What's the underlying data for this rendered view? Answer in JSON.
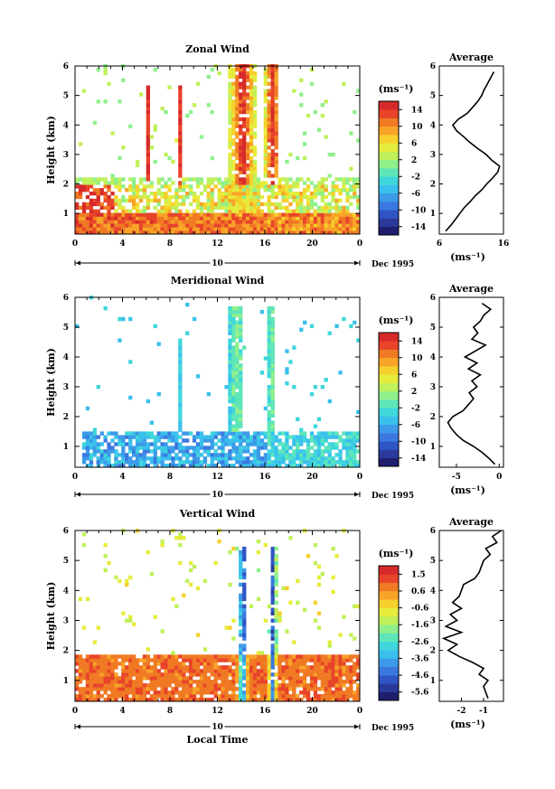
{
  "chart_data": [
    {
      "type": "heatmap",
      "title": "Zonal Wind",
      "ylabel": "Height (km)",
      "xlim": [
        0,
        24
      ],
      "ylim": [
        0.3,
        6
      ],
      "xticks": [
        "0",
        "4",
        "8",
        "12",
        "16",
        "20",
        "0"
      ],
      "yticks": [
        "1",
        "2",
        "3",
        "4",
        "5",
        "6"
      ],
      "date_label": "10",
      "date_suffix": "Dec 1995",
      "colorbar": {
        "unit": "(ms⁻¹)",
        "ticks": [
          "14",
          "10",
          "6",
          "2",
          "-2",
          "-6",
          "-10",
          "-14"
        ],
        "vmin": -16,
        "vmax": 16
      },
      "average": {
        "title": "Average",
        "xlim": [
          6,
          16
        ],
        "xticks": [
          "6",
          "16"
        ],
        "xlabel": "(ms⁻¹)",
        "profile": [
          [
            0.4,
            7.0
          ],
          [
            0.6,
            7.8
          ],
          [
            0.8,
            8.5
          ],
          [
            1.0,
            9.2
          ],
          [
            1.2,
            9.9
          ],
          [
            1.4,
            10.8
          ],
          [
            1.6,
            11.6
          ],
          [
            1.8,
            12.6
          ],
          [
            2.0,
            13.4
          ],
          [
            2.2,
            14.3
          ],
          [
            2.4,
            15.1
          ],
          [
            2.6,
            15.4
          ],
          [
            2.8,
            14.2
          ],
          [
            3.0,
            13.3
          ],
          [
            3.2,
            12.0
          ],
          [
            3.4,
            10.8
          ],
          [
            3.6,
            9.8
          ],
          [
            3.8,
            8.7
          ],
          [
            4.0,
            8.1
          ],
          [
            4.2,
            9.0
          ],
          [
            4.4,
            10.4
          ],
          [
            4.6,
            11.2
          ],
          [
            4.8,
            12.0
          ],
          [
            5.0,
            12.6
          ],
          [
            5.2,
            13.0
          ],
          [
            5.4,
            13.5
          ],
          [
            5.6,
            14.0
          ],
          [
            5.8,
            14.5
          ]
        ]
      }
    },
    {
      "type": "heatmap",
      "title": "Meridional Wind",
      "ylabel": "Height (km)",
      "xlim": [
        0,
        24
      ],
      "ylim": [
        0.3,
        6
      ],
      "xticks": [
        "0",
        "4",
        "8",
        "12",
        "16",
        "20",
        "0"
      ],
      "yticks": [
        "1",
        "2",
        "3",
        "4",
        "5",
        "6"
      ],
      "date_label": "10",
      "date_suffix": "Dec 1995",
      "colorbar": {
        "unit": "(ms⁻¹)",
        "ticks": [
          "14",
          "10",
          "6",
          "2",
          "-2",
          "-6",
          "-10",
          "-14"
        ],
        "vmin": -16,
        "vmax": 16
      },
      "average": {
        "title": "Average",
        "xlim": [
          -7,
          0.5
        ],
        "xticks": [
          "-5",
          "0"
        ],
        "xlabel": "(ms⁻¹)",
        "profile": [
          [
            0.4,
            -0.5
          ],
          [
            0.6,
            -1.2
          ],
          [
            0.8,
            -2.0
          ],
          [
            1.0,
            -3.0
          ],
          [
            1.2,
            -4.2
          ],
          [
            1.4,
            -5.0
          ],
          [
            1.6,
            -5.6
          ],
          [
            1.8,
            -6.0
          ],
          [
            2.0,
            -5.4
          ],
          [
            2.2,
            -4.2
          ],
          [
            2.4,
            -3.6
          ],
          [
            2.6,
            -3.0
          ],
          [
            2.8,
            -3.5
          ],
          [
            3.0,
            -2.6
          ],
          [
            3.2,
            -3.2
          ],
          [
            3.4,
            -2.2
          ],
          [
            3.6,
            -3.6
          ],
          [
            3.8,
            -2.6
          ],
          [
            4.0,
            -4.0
          ],
          [
            4.2,
            -2.8
          ],
          [
            4.4,
            -1.6
          ],
          [
            4.6,
            -3.2
          ],
          [
            4.8,
            -2.5
          ],
          [
            5.0,
            -3.0
          ],
          [
            5.2,
            -2.2
          ],
          [
            5.4,
            -1.8
          ],
          [
            5.6,
            -1.0
          ],
          [
            5.8,
            -2.0
          ]
        ]
      }
    },
    {
      "type": "heatmap",
      "title": "Vertical Wind",
      "ylabel": "Height (km)",
      "xlabel": "Local Time",
      "xlim": [
        0,
        24
      ],
      "ylim": [
        0.3,
        6
      ],
      "xticks": [
        "0",
        "4",
        "8",
        "12",
        "16",
        "20",
        "0"
      ],
      "yticks": [
        "1",
        "2",
        "3",
        "4",
        "5",
        "6"
      ],
      "date_label": "10",
      "date_suffix": "Dec 1995",
      "colorbar": {
        "unit": "(ms⁻¹)",
        "ticks": [
          "1.5",
          "0.6",
          "-0.6",
          "-1.6",
          "-2.6",
          "-3.6",
          "-4.6",
          "-5.6"
        ],
        "vmin": -6.2,
        "vmax": 2.0
      },
      "average": {
        "title": "Average",
        "xlim": [
          -3,
          -0.1
        ],
        "xticks": [
          "-2",
          "-1"
        ],
        "xlabel": "(ms⁻¹)",
        "profile": [
          [
            0.4,
            -0.8
          ],
          [
            0.6,
            -0.9
          ],
          [
            0.8,
            -1.0
          ],
          [
            1.0,
            -0.8
          ],
          [
            1.2,
            -1.2
          ],
          [
            1.4,
            -1.0
          ],
          [
            1.6,
            -1.5
          ],
          [
            1.8,
            -2.1
          ],
          [
            2.0,
            -2.6
          ],
          [
            2.2,
            -2.2
          ],
          [
            2.4,
            -2.8
          ],
          [
            2.6,
            -2.0
          ],
          [
            2.8,
            -2.7
          ],
          [
            3.0,
            -2.2
          ],
          [
            3.2,
            -2.5
          ],
          [
            3.4,
            -2.0
          ],
          [
            3.6,
            -2.4
          ],
          [
            3.8,
            -2.1
          ],
          [
            4.0,
            -2.0
          ],
          [
            4.2,
            -1.9
          ],
          [
            4.4,
            -1.4
          ],
          [
            4.6,
            -1.2
          ],
          [
            4.8,
            -1.1
          ],
          [
            5.0,
            -1.0
          ],
          [
            5.2,
            -0.7
          ],
          [
            5.4,
            -0.9
          ],
          [
            5.6,
            -0.4
          ],
          [
            5.8,
            -0.6
          ],
          [
            6.0,
            -0.2
          ]
        ]
      }
    }
  ]
}
